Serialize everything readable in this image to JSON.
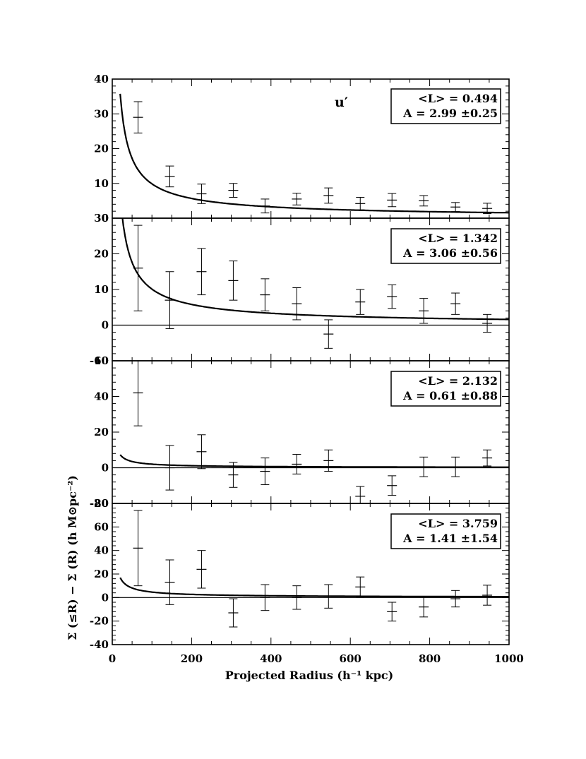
{
  "chart_data": {
    "type": "scatter",
    "band": "u′",
    "xlabel": "Projected Radius (h⁻¹ kpc)",
    "ylabel": "Σ (≤R) − Σ (R) (h M⊙pc⁻²)",
    "xlim": [
      0,
      1000
    ],
    "xticks": [
      0,
      200,
      400,
      600,
      800,
      1000
    ],
    "x_tick_labels": [
      "0",
      "200",
      "400",
      "600",
      "800",
      "1000"
    ],
    "model": "A / R^0.8 power-law fit",
    "panels": [
      {
        "ylim": [
          0,
          40
        ],
        "yticks": [
          0,
          10,
          20,
          30,
          40
        ],
        "y_tick_labels": [
          "0",
          "10",
          "20",
          "30",
          "40"
        ],
        "legend_line1": "<L> = 0.494",
        "legend_line2": "A = 2.99 ±0.25",
        "A": 2.99,
        "x": [
          65,
          145,
          225,
          305,
          385,
          465,
          545,
          625,
          705,
          785,
          865,
          945
        ],
        "y": [
          29,
          12,
          7,
          8,
          3.5,
          5.5,
          6.5,
          4.2,
          5.2,
          5,
          3.2,
          2.8
        ],
        "yerr": [
          4.5,
          3,
          2.8,
          2,
          2,
          1.7,
          2.2,
          1.8,
          1.9,
          1.5,
          1.3,
          1.5
        ]
      },
      {
        "ylim": [
          -10,
          30
        ],
        "yticks": [
          -10,
          0,
          10,
          20,
          30
        ],
        "y_tick_labels": [
          "-10",
          "0",
          "10",
          "20",
          "30"
        ],
        "legend_line1": "<L> = 1.342",
        "legend_line2": "A = 3.06 ±0.56",
        "A": 3.06,
        "x": [
          65,
          145,
          225,
          305,
          385,
          465,
          545,
          625,
          705,
          785,
          865,
          945
        ],
        "y": [
          16,
          7,
          15,
          12.5,
          8.5,
          6,
          -2.5,
          6.5,
          8,
          4,
          6,
          0.5
        ],
        "yerr": [
          12,
          8,
          6.5,
          5.5,
          4.5,
          4.5,
          4,
          3.5,
          3.3,
          3.5,
          3,
          2.5
        ]
      },
      {
        "ylim": [
          -20,
          60
        ],
        "yticks": [
          -20,
          0,
          20,
          40,
          60
        ],
        "y_tick_labels": [
          "-20",
          "0",
          "20",
          "40",
          "60"
        ],
        "legend_line1": "<L> = 2.132",
        "legend_line2": "A = 0.61 ±0.88",
        "A": 0.61,
        "x": [
          65,
          145,
          225,
          305,
          385,
          465,
          545,
          625,
          705,
          785,
          865,
          945
        ],
        "y": [
          42,
          0,
          9,
          -4,
          -2,
          2,
          4,
          -16,
          -10,
          0.5,
          0.5,
          5.5
        ],
        "yerr": [
          18.5,
          12.5,
          9.5,
          7,
          7.5,
          5.5,
          6,
          5.5,
          5.5,
          5.5,
          5.5,
          4.5
        ]
      },
      {
        "ylim": [
          -40,
          80
        ],
        "yticks": [
          -40,
          -20,
          0,
          20,
          40,
          60,
          80
        ],
        "y_tick_labels": [
          "-40",
          "-20",
          "0",
          "20",
          "40",
          "60",
          "80"
        ],
        "legend_line1": "<L> = 3.759",
        "legend_line2": "A = 1.41 ±1.54",
        "A": 1.41,
        "x": [
          65,
          145,
          225,
          305,
          385,
          465,
          545,
          625,
          705,
          785,
          865,
          945
        ],
        "y": [
          42,
          13,
          24,
          -13,
          0,
          0,
          1,
          9,
          -12,
          -8,
          -1,
          2
        ],
        "yerr": [
          32,
          19,
          16,
          12,
          11,
          10,
          10,
          8.5,
          8,
          8.5,
          7,
          8.5
        ]
      }
    ]
  }
}
